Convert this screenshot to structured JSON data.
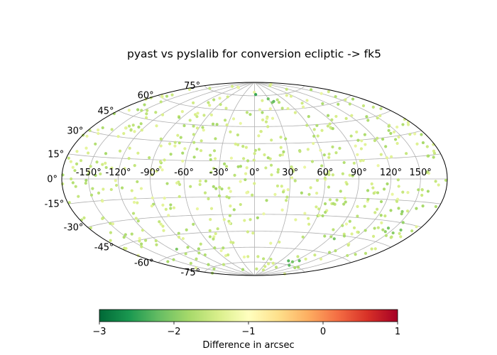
{
  "chart_data": {
    "type": "scatter",
    "projection": "hammer",
    "title": "pyast vs pyslalib for conversion ecliptic -> fk5",
    "grid": true,
    "lon_tick_labels": [
      "-150°",
      "-120°",
      "-90°",
      "-60°",
      "-30°",
      "0°",
      "30°",
      "60°",
      "90°",
      "120°",
      "150°"
    ],
    "lon_tick_values": [
      -150,
      -120,
      -90,
      -60,
      -30,
      0,
      30,
      60,
      90,
      120,
      150
    ],
    "lat_tick_labels": [
      "-75°",
      "-60°",
      "-45°",
      "-30°",
      "-15°",
      "0°",
      "15°",
      "30°",
      "45°",
      "60°",
      "75°"
    ],
    "lat_tick_values": [
      -75,
      -60,
      -45,
      -30,
      -15,
      0,
      15,
      30,
      45,
      60,
      75
    ],
    "xlim": [
      -180,
      180
    ],
    "ylim": [
      -90,
      90
    ],
    "colorbar": {
      "label": "Difference in arcsec",
      "cmap": "RdYlGn_r",
      "range": [
        -3,
        1
      ],
      "tick_values": [
        -3,
        -2,
        -1,
        0,
        1
      ],
      "tick_labels": [
        "−3",
        "−2",
        "−1",
        "0",
        "1"
      ]
    },
    "point_count": 600,
    "value_distribution": {
      "typical_range": [
        -1.8,
        -1.2
      ],
      "outlier_regions": [
        {
          "lon": -5,
          "lat": 70,
          "value": -2.3
        },
        {
          "lon": 30,
          "lat": 65,
          "value": -2.1
        },
        {
          "lon": 85,
          "lat": -70,
          "value": -2.2
        },
        {
          "lon": 95,
          "lat": -55,
          "value": -2.1
        },
        {
          "lon": -120,
          "lat": -60,
          "value": -2.0
        },
        {
          "lon": 155,
          "lat": -30,
          "value": -2.0
        }
      ]
    }
  }
}
